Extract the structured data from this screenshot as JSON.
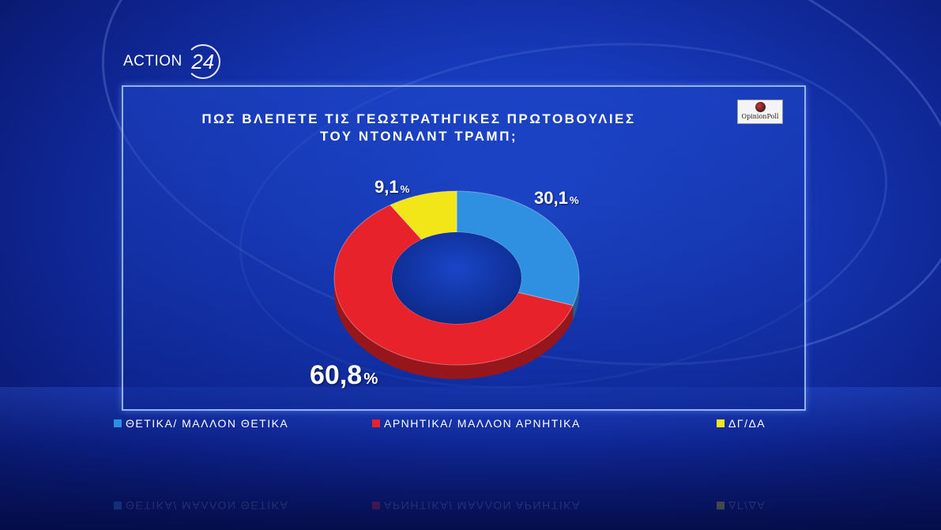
{
  "channel": {
    "brand": "ACTION",
    "number": "24"
  },
  "source": {
    "label": "OpinionPoll"
  },
  "chart_data": {
    "type": "pie",
    "title_line1": "ΠΩΣ ΒΛΕΠΕΤΕ ΤΙΣ ΓΕΩΣΤΡΑΤΗΓΙΚΕΣ ΠΡΩΤΟΒΟΥΛΙΕΣ",
    "title_line2": "ΤΟΥ ΝΤΟΝΑΛΝΤ ΤΡΑΜΠ;",
    "donut": true,
    "categories": [
      "ΘΕΤΙΚΑ/ ΜΑΛΛΟΝ ΘΕΤΙΚΑ",
      "ΑΡΝΗΤΙΚΑ/ ΜΑΛΛΟΝ ΑΡΝΗΤΙΚΑ",
      "ΔΓ/ΔΑ"
    ],
    "values": [
      30.1,
      60.8,
      9.1
    ],
    "value_labels": [
      "30,1",
      "60,8",
      "9,1"
    ],
    "unit": "%",
    "colors": [
      "#2f8fe0",
      "#e8222a",
      "#f2e619"
    ],
    "legend_position": "bottom"
  }
}
